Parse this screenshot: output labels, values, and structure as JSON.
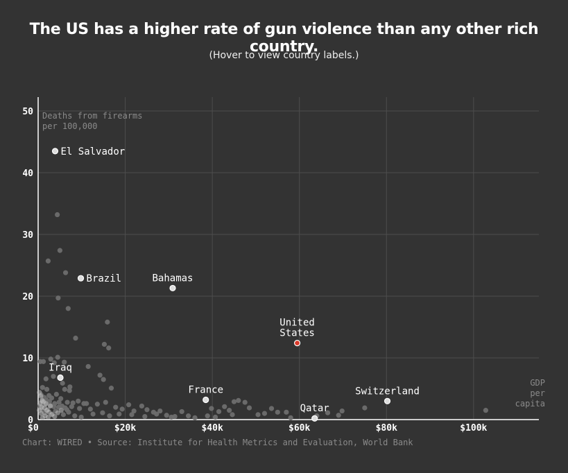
{
  "header": {
    "title": "The US has a higher rate of gun violence than any other rich country.",
    "subtitle": "(Hover to view country labels.)"
  },
  "footer": {
    "credit": "Chart: WIRED • Source: Institute for Health Metrics and Evaluation, World Bank"
  },
  "colors": {
    "background": "#333333",
    "grid": "#4d4d4d",
    "axis": "#ffffff",
    "point_muted": "#6e6e6e",
    "point_highlight": "#dddddd",
    "point_us": "#d93a2b",
    "annotation_text": "#8a8a8a"
  },
  "chart_data": {
    "type": "scatter",
    "ylabel": "Deaths from firearms per 100,000",
    "ylabel_lines": [
      "Deaths from firearms",
      "per 100,000"
    ],
    "xlabel": "GDP per capita",
    "xlabel_lines": [
      "GDP",
      "per",
      "capita"
    ],
    "xlim": [
      0,
      115000
    ],
    "ylim": [
      0,
      50
    ],
    "x_ticks": [
      0,
      20000,
      40000,
      60000,
      80000,
      100000
    ],
    "x_tick_labels": [
      "$0",
      "$20k",
      "$40k",
      "$60k",
      "$80k",
      "$100k"
    ],
    "y_ticks": [
      0,
      10,
      20,
      30,
      40,
      50
    ],
    "y_tick_labels": [
      "0",
      "10",
      "20",
      "30",
      "40",
      "50"
    ],
    "grid": true,
    "labeled_points": [
      {
        "label": "El Salvador",
        "x": 3900,
        "y": 43.5,
        "highlight": "light",
        "label_pos": "right"
      },
      {
        "label": "Brazil",
        "x": 9800,
        "y": 22.9,
        "highlight": "light",
        "label_pos": "right"
      },
      {
        "label": "Bahamas",
        "x": 30900,
        "y": 21.3,
        "highlight": "light",
        "label_pos": "above"
      },
      {
        "label": "United States",
        "lines": [
          "United",
          "States"
        ],
        "x": 59500,
        "y": 12.4,
        "highlight": "us",
        "label_pos": "above"
      },
      {
        "label": "Iraq",
        "x": 5100,
        "y": 6.8,
        "highlight": "light",
        "label_pos": "above"
      },
      {
        "label": "France",
        "x": 38500,
        "y": 3.2,
        "highlight": "light",
        "label_pos": "above"
      },
      {
        "label": "Switzerland",
        "x": 80200,
        "y": 3.0,
        "highlight": "light",
        "label_pos": "above"
      },
      {
        "label": "Qatar",
        "x": 63500,
        "y": 0.2,
        "highlight": "light",
        "label_pos": "above"
      }
    ],
    "points": [
      [
        4400,
        33.2
      ],
      [
        5000,
        27.4
      ],
      [
        2300,
        25.7
      ],
      [
        6300,
        23.8
      ],
      [
        4600,
        19.7
      ],
      [
        6900,
        18.0
      ],
      [
        15900,
        15.8
      ],
      [
        8600,
        13.2
      ],
      [
        15200,
        12.2
      ],
      [
        16200,
        11.6
      ],
      [
        4500,
        10.1
      ],
      [
        2900,
        9.8
      ],
      [
        1200,
        9.4
      ],
      [
        500,
        9.4
      ],
      [
        3700,
        9.2
      ],
      [
        6000,
        9.3
      ],
      [
        11500,
        8.6
      ],
      [
        14200,
        7.2
      ],
      [
        3500,
        7.0
      ],
      [
        1800,
        6.6
      ],
      [
        15000,
        6.5
      ],
      [
        5600,
        5.9
      ],
      [
        7300,
        5.3
      ],
      [
        16800,
        5.1
      ],
      [
        6100,
        4.9
      ],
      [
        7200,
        4.7
      ],
      [
        2000,
        4.9
      ],
      [
        1000,
        5.2
      ],
      [
        4200,
        4.1
      ],
      [
        700,
        4.0
      ],
      [
        2500,
        3.9
      ],
      [
        1400,
        3.6
      ],
      [
        3100,
        3.5
      ],
      [
        5200,
        3.4
      ],
      [
        9200,
        3.0
      ],
      [
        6700,
        2.8
      ],
      [
        8000,
        2.7
      ],
      [
        10500,
        2.6
      ],
      [
        900,
        3.0
      ],
      [
        1700,
        2.5
      ],
      [
        2800,
        2.3
      ],
      [
        3600,
        2.1
      ],
      [
        4700,
        2.0
      ],
      [
        6200,
        1.9
      ],
      [
        7700,
        2.1
      ],
      [
        9500,
        1.8
      ],
      [
        11100,
        2.6
      ],
      [
        13600,
        2.5
      ],
      [
        12000,
        1.7
      ],
      [
        15500,
        2.8
      ],
      [
        17800,
        2.0
      ],
      [
        19300,
        1.7
      ],
      [
        20800,
        2.4
      ],
      [
        22000,
        1.4
      ],
      [
        23800,
        2.2
      ],
      [
        25000,
        1.6
      ],
      [
        26500,
        1.2
      ],
      [
        28000,
        1.4
      ],
      [
        29500,
        0.7
      ],
      [
        31400,
        0.5
      ],
      [
        33000,
        1.3
      ],
      [
        36000,
        0.3
      ],
      [
        39800,
        1.8
      ],
      [
        41500,
        1.3
      ],
      [
        42800,
        2.1
      ],
      [
        43900,
        1.5
      ],
      [
        45000,
        2.9
      ],
      [
        46000,
        3.1
      ],
      [
        47500,
        2.8
      ],
      [
        48500,
        1.9
      ],
      [
        50500,
        0.8
      ],
      [
        53600,
        1.8
      ],
      [
        55000,
        1.2
      ],
      [
        57000,
        1.2
      ],
      [
        58000,
        0.3
      ],
      [
        64000,
        0.6
      ],
      [
        66500,
        1.1
      ],
      [
        69000,
        0.7
      ],
      [
        69800,
        1.4
      ],
      [
        75000,
        1.9
      ],
      [
        102800,
        1.5
      ],
      [
        1500,
        1.1
      ],
      [
        2200,
        1.6
      ],
      [
        3300,
        0.9
      ],
      [
        4000,
        1.4
      ],
      [
        5800,
        0.8
      ],
      [
        7000,
        1.2
      ],
      [
        8400,
        0.6
      ],
      [
        9900,
        0.4
      ],
      [
        12600,
        0.9
      ],
      [
        14800,
        1.1
      ],
      [
        16400,
        0.6
      ],
      [
        18600,
        0.9
      ],
      [
        21500,
        0.8
      ],
      [
        24500,
        0.5
      ],
      [
        27200,
        0.9
      ],
      [
        30600,
        0.4
      ],
      [
        34500,
        0.6
      ],
      [
        38900,
        0.6
      ],
      [
        40700,
        0.4
      ],
      [
        44600,
        0.8
      ],
      [
        52000,
        1.0
      ],
      [
        600,
        1.8
      ],
      [
        1100,
        2.4
      ],
      [
        1900,
        3.2
      ],
      [
        2600,
        2.9
      ],
      [
        3800,
        2.6
      ],
      [
        4800,
        2.8
      ],
      [
        5500,
        2.2
      ],
      [
        6600,
        1.6
      ],
      [
        400,
        2.2
      ],
      [
        1300,
        1.3
      ]
    ],
    "light_cluster": [
      [
        300,
        4.4
      ],
      [
        600,
        3.8
      ],
      [
        900,
        3.1
      ],
      [
        1200,
        2.9
      ],
      [
        400,
        2.6
      ],
      [
        800,
        2.0
      ],
      [
        1500,
        1.9
      ],
      [
        2000,
        1.5
      ],
      [
        2500,
        1.2
      ],
      [
        700,
        1.0
      ],
      [
        1600,
        0.6
      ],
      [
        2300,
        0.4
      ],
      [
        3100,
        0.8
      ],
      [
        3800,
        0.5
      ],
      [
        4500,
        1.1
      ],
      [
        1000,
        0.3
      ],
      [
        300,
        1.5
      ],
      [
        5300,
        1.5
      ],
      [
        2800,
        2.2
      ],
      [
        1800,
        2.6
      ]
    ]
  }
}
